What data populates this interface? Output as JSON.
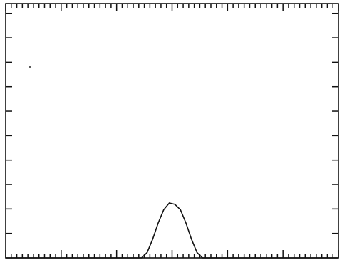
{
  "chart_data": {
    "type": "line",
    "title": "",
    "xlabel": "",
    "ylabel": "",
    "grid": false,
    "legend": "none",
    "xlim": [
      0,
      60
    ],
    "ylim": [
      0,
      9.5
    ],
    "x_minor_ticks_per_major": 10,
    "x_major_ticks": 6,
    "y_ticks": 10,
    "series": [
      {
        "x": [
          0,
          24.5,
          25.5,
          26.5,
          27.5,
          28.5,
          29.5,
          30.5,
          31.5,
          32.5,
          33.5,
          34.5,
          35.5,
          36.5,
          37.5,
          60
        ],
        "y": [
          0,
          0,
          0.2,
          0.7,
          1.3,
          1.8,
          2.05,
          2.0,
          1.8,
          1.3,
          0.7,
          0.2,
          0,
          0,
          0,
          0
        ]
      }
    ],
    "line_color": "#111111"
  }
}
